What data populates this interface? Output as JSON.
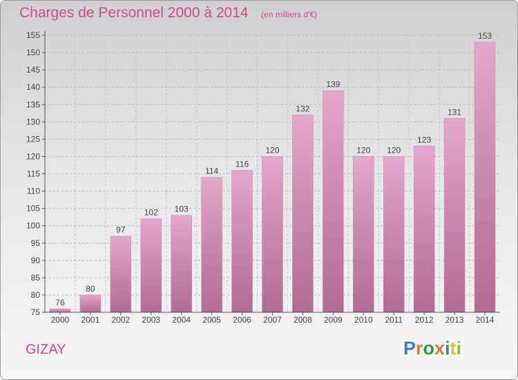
{
  "header": {
    "title": "Charges de Personnel 2000 à 2014",
    "subtitle": "(en milliers d'€)"
  },
  "footer": {
    "town": "GIZAY",
    "logo": "Proxiti",
    "logo_colors": [
      "#3a7fc4",
      "#e8742a",
      "#2a9d4a",
      "#e8742a",
      "#3a7fc4",
      "#d9c92a",
      "#8fbf3a"
    ]
  },
  "colors": {
    "bar_light": "#e4a6cb",
    "bar_dark": "#b06b92",
    "accent": "#d04a86",
    "axis": "#555555"
  },
  "chart_data": {
    "type": "bar",
    "title": "Charges de Personnel 2000 à 2014",
    "subtitle": "(en milliers d'€)",
    "categories": [
      "2000",
      "2001",
      "2002",
      "2003",
      "2004",
      "2005",
      "2006",
      "2007",
      "2008",
      "2009",
      "2010",
      "2011",
      "2012",
      "2013",
      "2014"
    ],
    "values": [
      76,
      80,
      97,
      102,
      103,
      114,
      116,
      120,
      132,
      139,
      120,
      120,
      123,
      131,
      153
    ],
    "ylim": [
      75,
      155
    ],
    "yticks": [
      75,
      80,
      85,
      90,
      95,
      100,
      105,
      110,
      115,
      120,
      125,
      130,
      135,
      140,
      145,
      150,
      155
    ],
    "grid": true,
    "legend": "none"
  }
}
